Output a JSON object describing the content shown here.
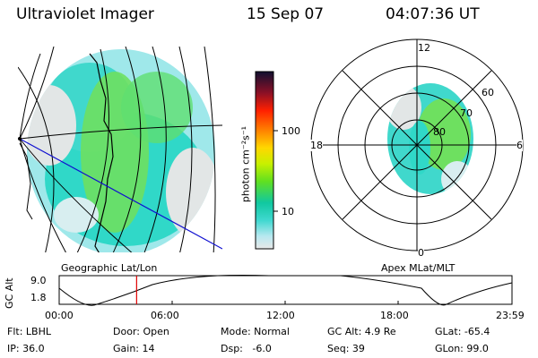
{
  "header": {
    "instrument": "Ultraviolet Imager",
    "date": "15 Sep 07",
    "time": "04:07:36 UT"
  },
  "geo_panel": {
    "label": "Geographic Lat/Lon"
  },
  "polar_panel": {
    "label": "Apex MLat/MLT",
    "mlt_labels": {
      "top": "12",
      "left": "18",
      "right": "6",
      "bottom": "0"
    },
    "lat_labels": [
      "60",
      "70",
      "80"
    ]
  },
  "colorbar": {
    "unit_label": "photon cm⁻²s⁻¹",
    "ticks": [
      "100",
      "10"
    ],
    "colors": [
      "#101030",
      "#8b1026",
      "#ff2000",
      "#ff8000",
      "#ffd700",
      "#c8f000",
      "#60e020",
      "#10c8a0",
      "#40d8d0",
      "#b8e8f0",
      "#e8e8e8"
    ]
  },
  "altitude_plot": {
    "ylabel": "GC Alt",
    "yticks": [
      "9.0",
      "1.8"
    ],
    "xticks": [
      "00:00",
      "06:00",
      "12:00",
      "18:00",
      "23:59"
    ],
    "current_time_fraction": 0.171
  },
  "footer": {
    "flt": "Flt: LBHL",
    "ip": "IP: 36.0",
    "door": "Door: Open",
    "gain": "Gain: 14",
    "mode": "Mode: Normal",
    "dsp": "Dsp:   -6.0",
    "gc_alt": "GC Alt: 4.9 Re",
    "seq": "Seq: 39",
    "glat": "GLat: -65.4",
    "glon": "GLon: 99.0"
  }
}
